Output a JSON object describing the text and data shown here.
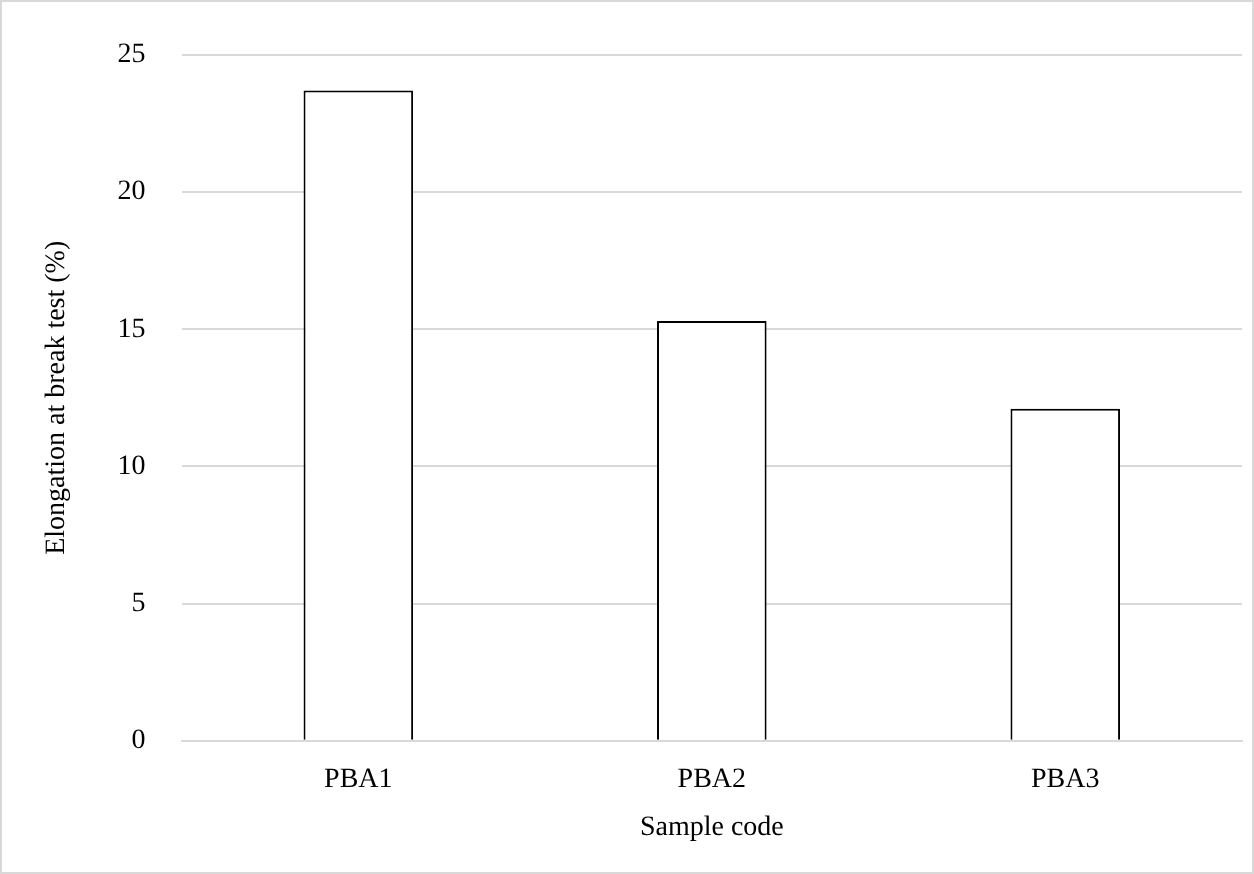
{
  "chart_data": {
    "type": "bar",
    "xlabel": "Sample code",
    "ylabel": "Elongation at break test (%)",
    "categories": [
      "PBA1",
      "PBA2",
      "PBA3"
    ],
    "values": [
      23.7,
      15.3,
      12.1
    ],
    "color": "#ffffff",
    "ylim": [
      0,
      25
    ],
    "yticks": [
      0,
      5,
      10,
      15,
      20,
      25
    ],
    "grid": "y",
    "legend": false
  }
}
